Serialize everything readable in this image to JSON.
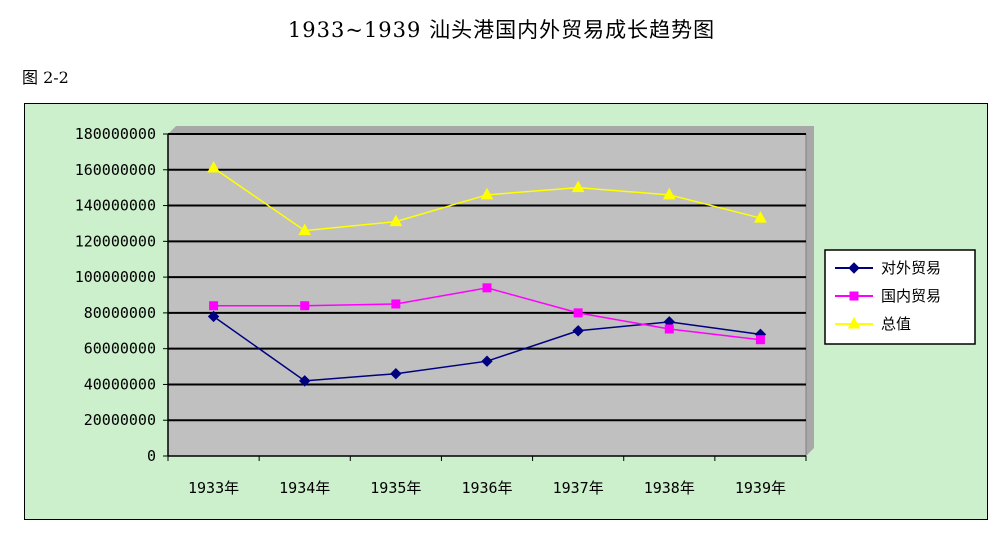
{
  "page": {
    "title": "1933~1939 汕头港国内外贸易成长趋势图",
    "figure_label": "图 2-2"
  },
  "chart_data": {
    "type": "line",
    "title": "",
    "xlabel": "",
    "ylabel": "",
    "categories": [
      "1933年",
      "1934年",
      "1935年",
      "1936年",
      "1937年",
      "1938年",
      "1939年"
    ],
    "ylim": [
      0,
      180000000
    ],
    "yticks": [
      0,
      20000000,
      40000000,
      60000000,
      80000000,
      100000000,
      120000000,
      140000000,
      160000000,
      180000000
    ],
    "grid": true,
    "legend_position": "right",
    "background": "#ccf0cc",
    "plot_background": "#c0c0c0",
    "series": [
      {
        "name": "对外贸易",
        "color": "#000080",
        "marker": "diamond",
        "values": [
          78000000,
          42000000,
          46000000,
          53000000,
          70000000,
          75000000,
          68000000
        ]
      },
      {
        "name": "国内贸易",
        "color": "#ff00ff",
        "marker": "square",
        "values": [
          84000000,
          84000000,
          85000000,
          94000000,
          80000000,
          71000000,
          65000000
        ]
      },
      {
        "name": "总值",
        "color": "#ffff00",
        "marker": "triangle",
        "values": [
          161000000,
          126000000,
          131000000,
          146000000,
          150000000,
          146000000,
          133000000
        ]
      }
    ]
  }
}
